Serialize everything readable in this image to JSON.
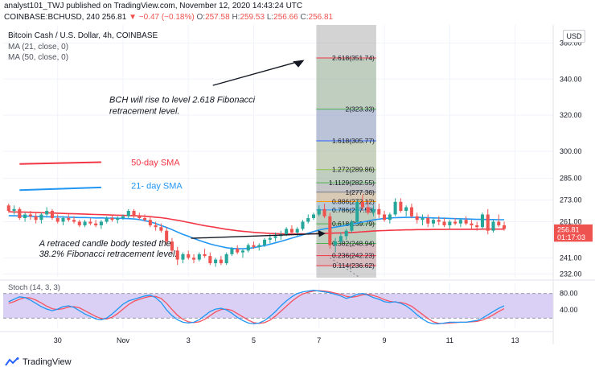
{
  "header": {
    "line1": "analyst101_TWJ published on TradingView.com, November 12, 2020 14:43:24 UTC",
    "symbol": "COINBASE:BCHUSD, 240",
    "last": "256.81",
    "change": "▼ −0.47 (−0.18%)",
    "o_label": "O:",
    "o_value": "257.58",
    "h_label": "H:",
    "h_value": "259.53",
    "l_label": "L:",
    "l_value": "256.66",
    "c_label": "C:",
    "c_value": "256.81"
  },
  "overlay": {
    "title": "Bitcoin Cash / U.S. Dollar, 4h, COINBASE",
    "ma1": "MA (21, close, 0)",
    "ma2": "MA (50, close, 0)",
    "currency_button": "USD"
  },
  "footer": {
    "brand": "TradingView"
  },
  "colors": {
    "up": "#26a69a",
    "down": "#ef5350",
    "ma21": "#2196f3",
    "ma50": "#f23645",
    "stoch_k": "#2196f3",
    "stoch_d": "#f7525f",
    "stoch_bg": "#d4c8f3",
    "fib_shade": "#9e9e9e"
  },
  "chart_data": {
    "type": "candlestick",
    "price_axis": {
      "ticks": [
        360,
        340,
        320,
        300,
        285,
        273,
        261,
        241,
        232
      ],
      "ylim": [
        230,
        370
      ]
    },
    "time_axis": {
      "ticks": [
        "30",
        "Nov",
        "3",
        "5",
        "7",
        "9",
        "11",
        "13"
      ],
      "tick_index": [
        9,
        21,
        33,
        45,
        57,
        69,
        81,
        93
      ],
      "range": [
        -1,
        100
      ]
    },
    "candles": [
      [
        270,
        271,
        266,
        267
      ],
      [
        267,
        270,
        265,
        268
      ],
      [
        268,
        269,
        262,
        263
      ],
      [
        263,
        266,
        261,
        265
      ],
      [
        265,
        267,
        262,
        264
      ],
      [
        264,
        266,
        260,
        262
      ],
      [
        262,
        266,
        260,
        265
      ],
      [
        265,
        269,
        264,
        267
      ],
      [
        267,
        268,
        262,
        263
      ],
      [
        263,
        265,
        260,
        261
      ],
      [
        261,
        264,
        259,
        263
      ],
      [
        263,
        265,
        261,
        262
      ],
      [
        262,
        264,
        260,
        261
      ],
      [
        261,
        262,
        258,
        259
      ],
      [
        259,
        262,
        258,
        261
      ],
      [
        261,
        263,
        259,
        260
      ],
      [
        260,
        262,
        258,
        259
      ],
      [
        259,
        262,
        257,
        261
      ],
      [
        261,
        264,
        260,
        263
      ],
      [
        263,
        265,
        261,
        262
      ],
      [
        262,
        264,
        260,
        263
      ],
      [
        263,
        265,
        262,
        264
      ],
      [
        264,
        268,
        263,
        267
      ],
      [
        267,
        268,
        263,
        264
      ],
      [
        264,
        266,
        262,
        263
      ],
      [
        263,
        265,
        261,
        262
      ],
      [
        262,
        264,
        258,
        259
      ],
      [
        259,
        261,
        256,
        258
      ],
      [
        258,
        260,
        255,
        256
      ],
      [
        256,
        258,
        248,
        250
      ],
      [
        250,
        252,
        243,
        245
      ],
      [
        245,
        247,
        237,
        240
      ],
      [
        240,
        244,
        238,
        243
      ],
      [
        243,
        245,
        240,
        241
      ],
      [
        241,
        243,
        238,
        240
      ],
      [
        240,
        244,
        239,
        243
      ],
      [
        243,
        246,
        241,
        242
      ],
      [
        242,
        244,
        237,
        238
      ],
      [
        238,
        241,
        236,
        240
      ],
      [
        240,
        242,
        237,
        238
      ],
      [
        238,
        244,
        237,
        243
      ],
      [
        243,
        247,
        242,
        246
      ],
      [
        246,
        248,
        243,
        244
      ],
      [
        244,
        246,
        241,
        245
      ],
      [
        245,
        249,
        244,
        248
      ],
      [
        248,
        250,
        246,
        247
      ],
      [
        247,
        249,
        245,
        248
      ],
      [
        248,
        252,
        247,
        251
      ],
      [
        251,
        254,
        249,
        252
      ],
      [
        252,
        255,
        250,
        253
      ],
      [
        253,
        256,
        251,
        254
      ],
      [
        254,
        258,
        253,
        257
      ],
      [
        257,
        259,
        254,
        255
      ],
      [
        255,
        258,
        253,
        257
      ],
      [
        257,
        262,
        256,
        261
      ],
      [
        261,
        265,
        260,
        263
      ],
      [
        263,
        266,
        262,
        265
      ],
      [
        265,
        270,
        264,
        268
      ],
      [
        268,
        271,
        263,
        264
      ],
      [
        264,
        266,
        246,
        248
      ],
      [
        248,
        252,
        244,
        250
      ],
      [
        250,
        255,
        249,
        253
      ],
      [
        253,
        257,
        251,
        256
      ],
      [
        256,
        262,
        255,
        261
      ],
      [
        261,
        273,
        260,
        272
      ],
      [
        272,
        276,
        267,
        269
      ],
      [
        269,
        273,
        265,
        266
      ],
      [
        266,
        270,
        264,
        268
      ],
      [
        268,
        271,
        263,
        265
      ],
      [
        265,
        267,
        261,
        262
      ],
      [
        262,
        266,
        260,
        265
      ],
      [
        265,
        274,
        264,
        272
      ],
      [
        272,
        274,
        266,
        267
      ],
      [
        267,
        270,
        264,
        269
      ],
      [
        269,
        271,
        263,
        264
      ],
      [
        264,
        266,
        260,
        262
      ],
      [
        262,
        265,
        259,
        263
      ],
      [
        263,
        265,
        258,
        260
      ],
      [
        260,
        263,
        258,
        262
      ],
      [
        262,
        264,
        259,
        261
      ],
      [
        261,
        263,
        258,
        259
      ],
      [
        259,
        262,
        257,
        261
      ],
      [
        261,
        263,
        259,
        260
      ],
      [
        260,
        263,
        258,
        262
      ],
      [
        262,
        264,
        259,
        260
      ],
      [
        260,
        262,
        257,
        259
      ],
      [
        259,
        261,
        256,
        258
      ],
      [
        258,
        266,
        257,
        265
      ],
      [
        265,
        268,
        254,
        256
      ],
      [
        256,
        262,
        255,
        261
      ],
      [
        261,
        265,
        258,
        259
      ],
      [
        259,
        261,
        256,
        257
      ]
    ],
    "ma21": [
      264.3,
      264.3,
      264.2,
      264.1,
      264,
      263.9,
      263.8,
      263.7,
      263.7,
      263.6,
      263.6,
      263.5,
      263.4,
      263.3,
      263.3,
      263.2,
      263.1,
      263.1,
      263,
      263,
      262.9,
      262.8,
      262.7,
      262.5,
      262.2,
      261.6,
      260.9,
      260,
      258.9,
      257.8,
      256.6,
      255.3,
      254,
      252.9,
      251.7,
      250.6,
      249.6,
      248.7,
      247.9,
      247.2,
      246.6,
      246.2,
      246,
      246,
      246.2,
      246.6,
      247.2,
      247.8,
      248.5,
      249.3,
      250.1,
      251,
      251.9,
      252.8,
      253.7,
      254.6,
      255.5,
      256.4,
      257,
      257.5,
      258,
      258.5,
      259,
      259.6,
      260.2,
      260.8,
      261.4,
      262,
      262.4,
      262.8,
      263,
      263.2,
      263.3,
      263.4,
      263.4,
      263.4,
      263.3,
      263.2,
      263.1,
      263,
      262.9,
      262.8,
      262.7,
      262.6,
      262.5,
      262.4,
      262.3,
      262.3,
      262.2,
      262.2,
      262.1,
      262.1
    ],
    "ma50": [
      266.5,
      266.4,
      266.4,
      266.3,
      266.2,
      266.1,
      266,
      265.9,
      265.8,
      265.7,
      265.6,
      265.5,
      265.4,
      265.3,
      265.2,
      265.1,
      265,
      264.9,
      264.8,
      264.7,
      264.6,
      264.5,
      264.4,
      264.3,
      264.2,
      264,
      263.8,
      263.5,
      263.2,
      262.8,
      262.3,
      261.8,
      261.2,
      260.6,
      260,
      259.4,
      258.8,
      258.3,
      257.8,
      257.3,
      256.8,
      256.4,
      256,
      255.7,
      255.4,
      255.1,
      254.9,
      254.7,
      254.5,
      254.4,
      254.3,
      254.2,
      254.2,
      254.2,
      254.2,
      254.2,
      254.3,
      254.4,
      254.5,
      254.6,
      254.7,
      254.8,
      254.9,
      255,
      255.2,
      255.4,
      255.6,
      255.8,
      256,
      256.1,
      256.2,
      256.3,
      256.4,
      256.5,
      256.5,
      256.6,
      256.6,
      256.6,
      256.7,
      256.7,
      256.7,
      256.8,
      256.8,
      256.8,
      256.8,
      256.8,
      256.8,
      256.9,
      256.9,
      256.9,
      256.9,
      256.9
    ],
    "price_badges": [
      {
        "value": 256.81,
        "text": "256.81",
        "color": "#ef5350"
      },
      {
        "value": 252.6,
        "text": "01:17:03",
        "color": "#ef5350"
      }
    ],
    "fibonacci": {
      "x_start": 56.5,
      "x_end": 67.5,
      "levels": [
        {
          "ratio": "2.618",
          "value": 351.74,
          "label": "2.618(351.74)",
          "color": "#f23645"
        },
        {
          "ratio": "2",
          "value": 323.33,
          "label": "2(323.33)",
          "color": "#4caf50"
        },
        {
          "ratio": "1.618",
          "value": 305.77,
          "label": "1.618(305.77)",
          "color": "#2962ff"
        },
        {
          "ratio": "1.272",
          "value": 289.86,
          "label": "1.272(289.86)",
          "color": "#8bc34a"
        },
        {
          "ratio": "1.1129",
          "value": 282.55,
          "label": "1.1129(282.55)",
          "color": "#4caf50"
        },
        {
          "ratio": "1",
          "value": 277.36,
          "label": "1(277.36)",
          "color": "#787b86"
        },
        {
          "ratio": "0.886",
          "value": 272.12,
          "label": "0.886(272.12)",
          "color": "#ff9800"
        },
        {
          "ratio": "0.786",
          "value": 267.53,
          "label": "0.786(267.53)",
          "color": "#2196f3"
        },
        {
          "ratio": "0.618",
          "value": 259.79,
          "label": "0.618(259.79)",
          "color": "#4caf50"
        },
        {
          "ratio": "0.382",
          "value": 248.94,
          "label": "0.382(248.94)",
          "color": "#4caf50"
        },
        {
          "ratio": "0.236",
          "value": 242.23,
          "label": "0.236(242.23)",
          "color": "#f23645"
        },
        {
          "ratio": "0.114",
          "value": 236.62,
          "label": "0.114(236.62)",
          "color": "#f23645"
        }
      ]
    },
    "stoch": {
      "title": "Stoch (14, 3, 3)",
      "ticks": [
        80,
        40
      ],
      "ylim": [
        -5,
        105
      ],
      "band": [
        20,
        80
      ],
      "k": [
        60,
        66,
        72,
        70,
        64,
        56,
        48,
        42,
        38,
        42,
        48,
        50,
        46,
        38,
        30,
        24,
        18,
        16,
        20,
        30,
        42,
        54,
        62,
        66,
        70,
        74,
        76,
        70,
        58,
        40,
        26,
        16,
        10,
        8,
        10,
        16,
        26,
        36,
        42,
        44,
        40,
        32,
        22,
        14,
        8,
        6,
        8,
        14,
        24,
        36,
        50,
        62,
        72,
        80,
        84,
        86,
        88,
        86,
        84,
        82,
        78,
        74,
        68,
        72,
        78,
        80,
        76,
        70,
        66,
        60,
        58,
        60,
        56,
        50,
        40,
        28,
        18,
        10,
        6,
        6,
        8,
        10,
        10,
        10,
        10,
        12,
        14,
        20,
        28,
        36,
        44,
        50
      ],
      "d": [
        56,
        60,
        66,
        70,
        69,
        64,
        57,
        49,
        43,
        41,
        43,
        47,
        48,
        45,
        38,
        31,
        24,
        19,
        18,
        22,
        31,
        42,
        53,
        61,
        66,
        70,
        73,
        73,
        68,
        56,
        41,
        27,
        17,
        11,
        9,
        11,
        17,
        26,
        35,
        41,
        42,
        39,
        31,
        23,
        15,
        9,
        7,
        9,
        15,
        25,
        37,
        49,
        61,
        71,
        79,
        83,
        86,
        87,
        86,
        84,
        81,
        78,
        73,
        71,
        73,
        77,
        78,
        75,
        71,
        65,
        61,
        59,
        58,
        55,
        49,
        39,
        29,
        19,
        11,
        7,
        7,
        8,
        9,
        10,
        10,
        11,
        12,
        15,
        21,
        28,
        36,
        43
      ]
    },
    "annotations": {
      "sma50_label": "50-day SMA",
      "sma21_label": "21- day SMA",
      "text_top": [
        "BCH will rise to level 2.618 Fibonacci",
        "retracement level."
      ],
      "text_bottom": [
        "A retraced candle body tested the",
        "38.2% Fibonacci retracement level."
      ]
    }
  }
}
